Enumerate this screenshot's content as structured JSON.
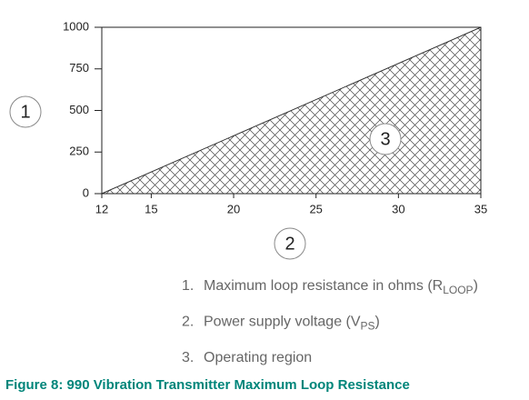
{
  "chart_data": {
    "type": "area",
    "x": [
      12,
      35
    ],
    "values": [
      0,
      1000
    ],
    "xlim": [
      12,
      35
    ],
    "xticks": [
      12,
      15,
      20,
      25,
      30,
      35
    ],
    "ylim": [
      0,
      1000
    ],
    "yticks": [
      0,
      250,
      500,
      750,
      1000
    ],
    "color": "#333333",
    "callouts": {
      "y_axis": "1",
      "x_axis": "2",
      "region": "3"
    },
    "notes": [
      {
        "number": "1.",
        "text": "Maximum loop resistance in ohms (R",
        "sub": "LOOP",
        "end": ")"
      },
      {
        "number": "2.",
        "text": "Power supply voltage (V",
        "sub": "PS",
        "end": ")"
      },
      {
        "number": "3.",
        "text": "Operating region"
      }
    ],
    "caption": "Figure 8:  990 Vibration Transmitter Maximum Loop Resistance"
  }
}
